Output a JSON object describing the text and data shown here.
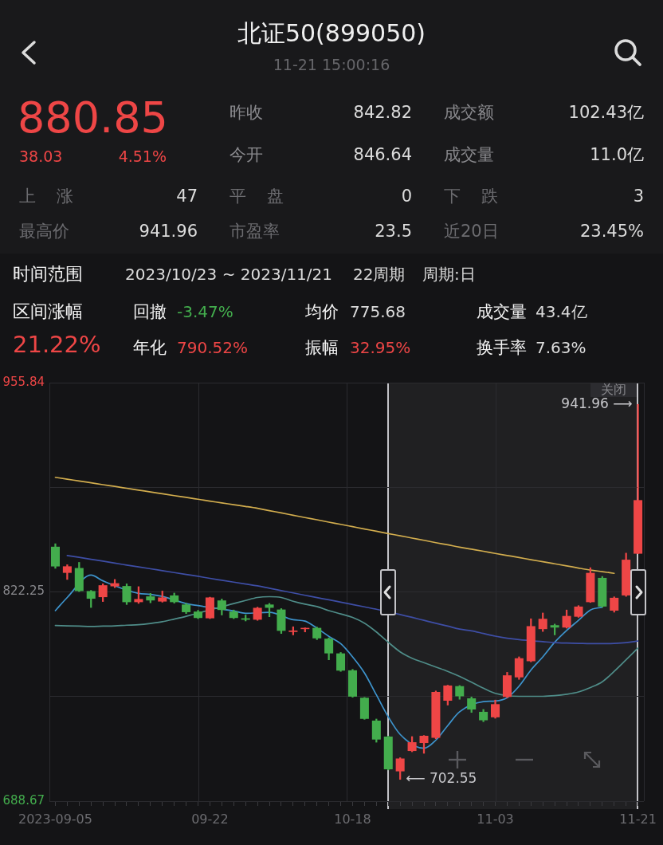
{
  "chart_data": [
    {
      "type": "other",
      "title": "北证50(899050)",
      "subtitle": "11-21 15:00:16",
      "annotations": [
        "880.85",
        "38.03",
        "4.51%",
        "昨收",
        "842.82",
        "成交额",
        "102.43亿",
        "今开",
        "846.64",
        "成交量",
        "11.0亿",
        "上涨",
        "47",
        "平盘",
        "0",
        "下跌",
        "3",
        "最高价",
        "941.96",
        "市盈率",
        "23.5",
        "近20日",
        "23.45%",
        "时间范围",
        "2023/10/23 ~ 2023/11/21",
        "22周期",
        "周期:日",
        "区间涨幅",
        "21.22%",
        "回撤",
        "-3.47%",
        "均价",
        "775.68",
        "成交量",
        "43.4亿",
        "年化",
        "790.52%",
        "振幅",
        "32.95%",
        "换手率",
        "7.63%"
      ]
    },
    {
      "type": "candlestick",
      "categories": [
        "2023-09-05",
        null,
        null,
        null,
        null,
        null,
        null,
        null,
        null,
        null,
        null,
        null,
        null,
        "09-22",
        null,
        null,
        null,
        null,
        null,
        null,
        null,
        null,
        null,
        null,
        null,
        "10-18",
        null,
        null,
        null,
        null,
        null,
        null,
        null,
        null,
        null,
        null,
        null,
        "11-03",
        null,
        null,
        null,
        null,
        null,
        null,
        null,
        null,
        null,
        null,
        null,
        "11-21"
      ],
      "ohlc": [
        [
          851.1,
          853.0,
          837.3,
          838.5
        ],
        [
          834.4,
          839.6,
          830.2,
          838.6
        ],
        [
          837.5,
          841.1,
          822.5,
          822.8
        ],
        [
          822.8,
          823.2,
          812.3,
          817.9
        ],
        [
          818.9,
          827.4,
          816.1,
          826.5
        ],
        [
          825.8,
          830.2,
          825.0,
          827.8
        ],
        [
          826.0,
          827.4,
          814.2,
          815.7
        ],
        [
          815.7,
          825.6,
          814.9,
          817.7
        ],
        [
          819.4,
          821.3,
          815.3,
          816.8
        ],
        [
          816.1,
          822.8,
          815.7,
          818.7
        ],
        [
          820.0,
          821.5,
          815.1,
          815.7
        ],
        [
          814.2,
          814.9,
          808.4,
          809.3
        ],
        [
          809.7,
          810.5,
          805.2,
          805.6
        ],
        [
          805.4,
          818.9,
          805.2,
          818.7
        ],
        [
          816.8,
          817.7,
          807.5,
          810.7
        ],
        [
          809.7,
          810.7,
          805.2,
          805.6
        ],
        [
          805.4,
          807.5,
          803.7,
          804.5
        ],
        [
          804.5,
          812.5,
          804.1,
          812.1
        ],
        [
          814.2,
          814.9,
          806.4,
          812.1
        ],
        [
          811.0,
          811.6,
          795.7,
          797.4
        ],
        [
          796.7,
          800.0,
          794.8,
          797.6
        ],
        [
          798.5,
          799.3,
          796.7,
          799.3
        ],
        [
          799.3,
          799.8,
          791.8,
          792.6
        ],
        [
          792.4,
          792.9,
          778.9,
          783.0
        ],
        [
          783.0,
          783.6,
          771.5,
          772.0
        ],
        [
          772.2,
          772.8,
          755.0,
          755.4
        ],
        [
          754.7,
          754.9,
          740.9,
          741.2
        ],
        [
          740.1,
          741.1,
          726.3,
          728.0
        ],
        [
          729.9,
          730.2,
          708.6,
          709.0
        ],
        [
          707.7,
          716.4,
          702.55,
          715.9
        ],
        [
          720.7,
          729.9,
          720.2,
          726.3
        ],
        [
          725.8,
          730.6,
          719.2,
          730.4
        ],
        [
          729.1,
          759.0,
          728.5,
          758.4
        ],
        [
          752.8,
          762.7,
          750.0,
          762.5
        ],
        [
          762.1,
          762.5,
          753.7,
          755.6
        ],
        [
          754.3,
          755.2,
          745.3,
          747.2
        ],
        [
          745.7,
          747.2,
          739.4,
          740.3
        ],
        [
          742.2,
          753.2,
          741.6,
          750.6
        ],
        [
          755.2,
          770.9,
          754.7,
          769.0
        ],
        [
          767.7,
          780.8,
          766.4,
          779.9
        ],
        [
          778.0,
          805.1,
          777.6,
          800.4
        ],
        [
          798.5,
          808.8,
          797.0,
          805.1
        ],
        [
          801.0,
          801.7,
          794.8,
          799.5
        ],
        [
          799.5,
          810.7,
          799.1,
          806.9
        ],
        [
          806.4,
          813.5,
          806.0,
          812.9
        ],
        [
          815.7,
          837.7,
          815.5,
          834.4
        ],
        [
          831.2,
          832.1,
          812.5,
          812.9
        ],
        [
          810.3,
          819.1,
          809.3,
          818.5
        ],
        [
          820.0,
          847.0,
          819.4,
          842.82
        ],
        [
          846.64,
          941.96,
          846.64,
          880.85
        ]
      ],
      "series": [
        {
          "type": "line",
          "color": "#d2ad4e",
          "values": [
            895.4,
            894.2,
            893.1,
            891.9,
            890.7,
            889.6,
            888.4,
            887.2,
            886.1,
            884.9,
            883.7,
            882.6,
            881.4,
            880.2,
            879.1,
            877.9,
            876.8,
            875.6,
            874.1,
            872.7,
            871.2,
            869.7,
            868.3,
            866.8,
            865.4,
            863.9,
            862.4,
            861.0,
            859.5,
            858.1,
            856.6,
            855.2,
            853.7,
            852.3,
            850.8,
            849.5,
            848.2,
            846.8,
            845.5,
            844.2,
            842.8,
            841.5,
            840.2,
            838.9,
            837.5,
            836.2,
            835.2,
            834.1,
            null,
            null
          ]
        },
        {
          "type": "line",
          "color": "#3e4ea6",
          "values": [
            null,
            845.5,
            844.3,
            843.1,
            841.9,
            840.6,
            839.4,
            838.2,
            837.0,
            835.8,
            834.6,
            833.4,
            832.2,
            830.9,
            829.7,
            828.5,
            827.3,
            826.1,
            824.6,
            823.1,
            821.6,
            820.1,
            818.6,
            817.2,
            815.7,
            814.2,
            812.7,
            811.2,
            null,
            807.8,
            806.0,
            804.1,
            802.2,
            800.4,
            798.5,
            797.4,
            795.7,
            794.0,
            792.7,
            791.8,
            null,
            790.5,
            789.9,
            789.6,
            789.4,
            789.2,
            789.2,
            789.4,
            789.9,
            790.9
          ]
        },
        {
          "type": "line",
          "color": "#4f8d89",
          "values": [
            800.8,
            800.6,
            800.4,
            800.2,
            800.4,
            800.6,
            801.0,
            801.3,
            802.1,
            803.2,
            804.9,
            806.7,
            null,
            null,
            null,
            814.8,
            816.8,
            818.7,
            819.2,
            818.7,
            816.3,
            814.4,
            812.9,
            810.3,
            808.2,
            806.0,
            802.3,
            796.7,
            790.1,
            784.0,
            779.9,
            777.1,
            774.3,
            771.5,
            768.3,
            764.6,
            760.8,
            757.5,
            null,
            755.6,
            755.6,
            755.6,
            756.0,
            756.9,
            758.4,
            761.2,
            764.9,
            771.5,
            778.9,
            786.4
          ]
        },
        {
          "type": "line",
          "color": "#3d93cc",
          "values": [
            810.3,
            818.7,
            null,
            833.0,
            829.3,
            null,
            null,
            821.3,
            820.7,
            819.4,
            null,
            814.8,
            813.5,
            null,
            null,
            810.1,
            808.6,
            null,
            809.2,
            null,
            804.5,
            803.6,
            799.1,
            793.9,
            789.2,
            780.8,
            770.5,
            756.5,
            742.5,
            731.3,
            null,
            722.4,
            727.6,
            736.9,
            745.7,
            null,
            752.2,
            752.6,
            754.7,
            762.1,
            772.4,
            780.8,
            790.1,
            797.6,
            804.1,
            810.7,
            812.5,
            null,
            null,
            null
          ]
        }
      ],
      "ylim": [
        688.67,
        955.84
      ],
      "yticks": [
        688.67,
        {
          "value": 755.46,
          "label": null
        },
        822.25,
        {
          "value": 889.05,
          "label": null
        },
        955.84
      ],
      "grid": true,
      "marker": "none",
      "annotations": [
        "941.96 ⟶",
        "⟵ 702.55",
        "关闭"
      ]
    }
  ]
}
